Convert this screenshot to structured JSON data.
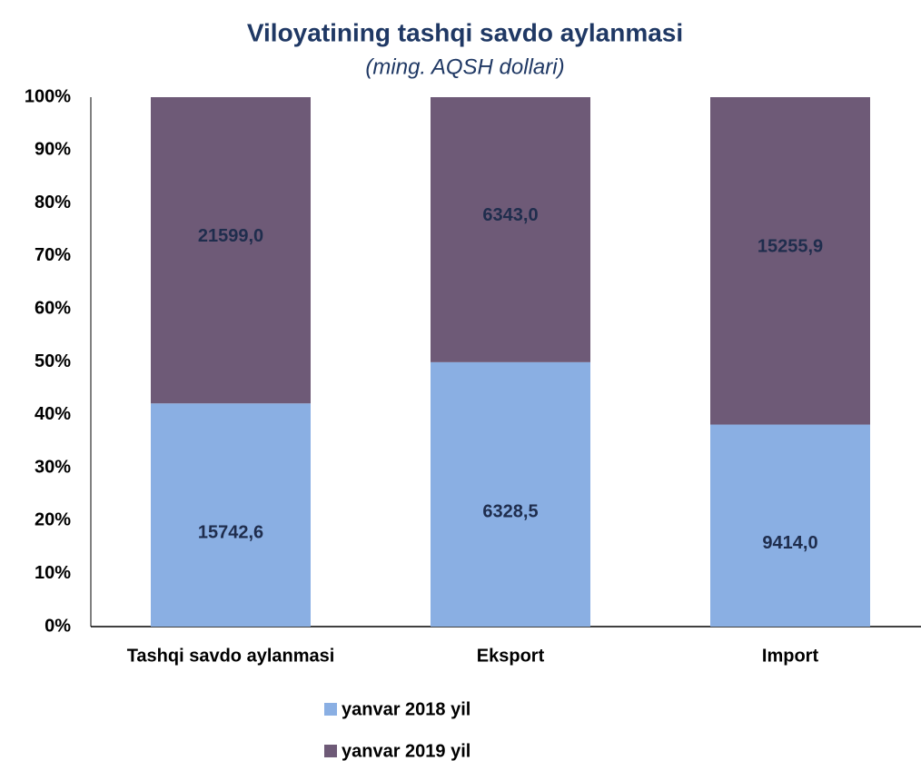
{
  "chart_data": {
    "type": "stacked_percent_bar",
    "title": "Viloyatining tashqi savdo aylanmasi",
    "subtitle": "(ming. AQSH dollari)",
    "categories": [
      "Tashqi savdo aylanmasi",
      "Eksport",
      "Import"
    ],
    "series": [
      {
        "name": "yanvar 2018 yil",
        "color": "#8aafe3",
        "values": [
          15742.6,
          6328.5,
          9414.0
        ],
        "value_labels": [
          "15742,6",
          "6328,5",
          "9414,0"
        ]
      },
      {
        "name": "yanvar 2019 yil",
        "color": "#6e5a77",
        "values": [
          21599.0,
          6343.0,
          15255.9
        ],
        "value_labels": [
          "21599,0",
          "6343,0",
          "15255,9"
        ]
      }
    ],
    "ylim": [
      0,
      100
    ],
    "yticks": [
      {
        "value": 0,
        "label": "0%"
      },
      {
        "value": 10,
        "label": "10%"
      },
      {
        "value": 20,
        "label": "20%"
      },
      {
        "value": 30,
        "label": "30%"
      },
      {
        "value": 40,
        "label": "40%"
      },
      {
        "value": 50,
        "label": "50%"
      },
      {
        "value": 60,
        "label": "60%"
      },
      {
        "value": 70,
        "label": "70%"
      },
      {
        "value": 80,
        "label": "80%"
      },
      {
        "value": 90,
        "label": "90%"
      },
      {
        "value": 100,
        "label": "100%"
      }
    ],
    "grid": false
  }
}
